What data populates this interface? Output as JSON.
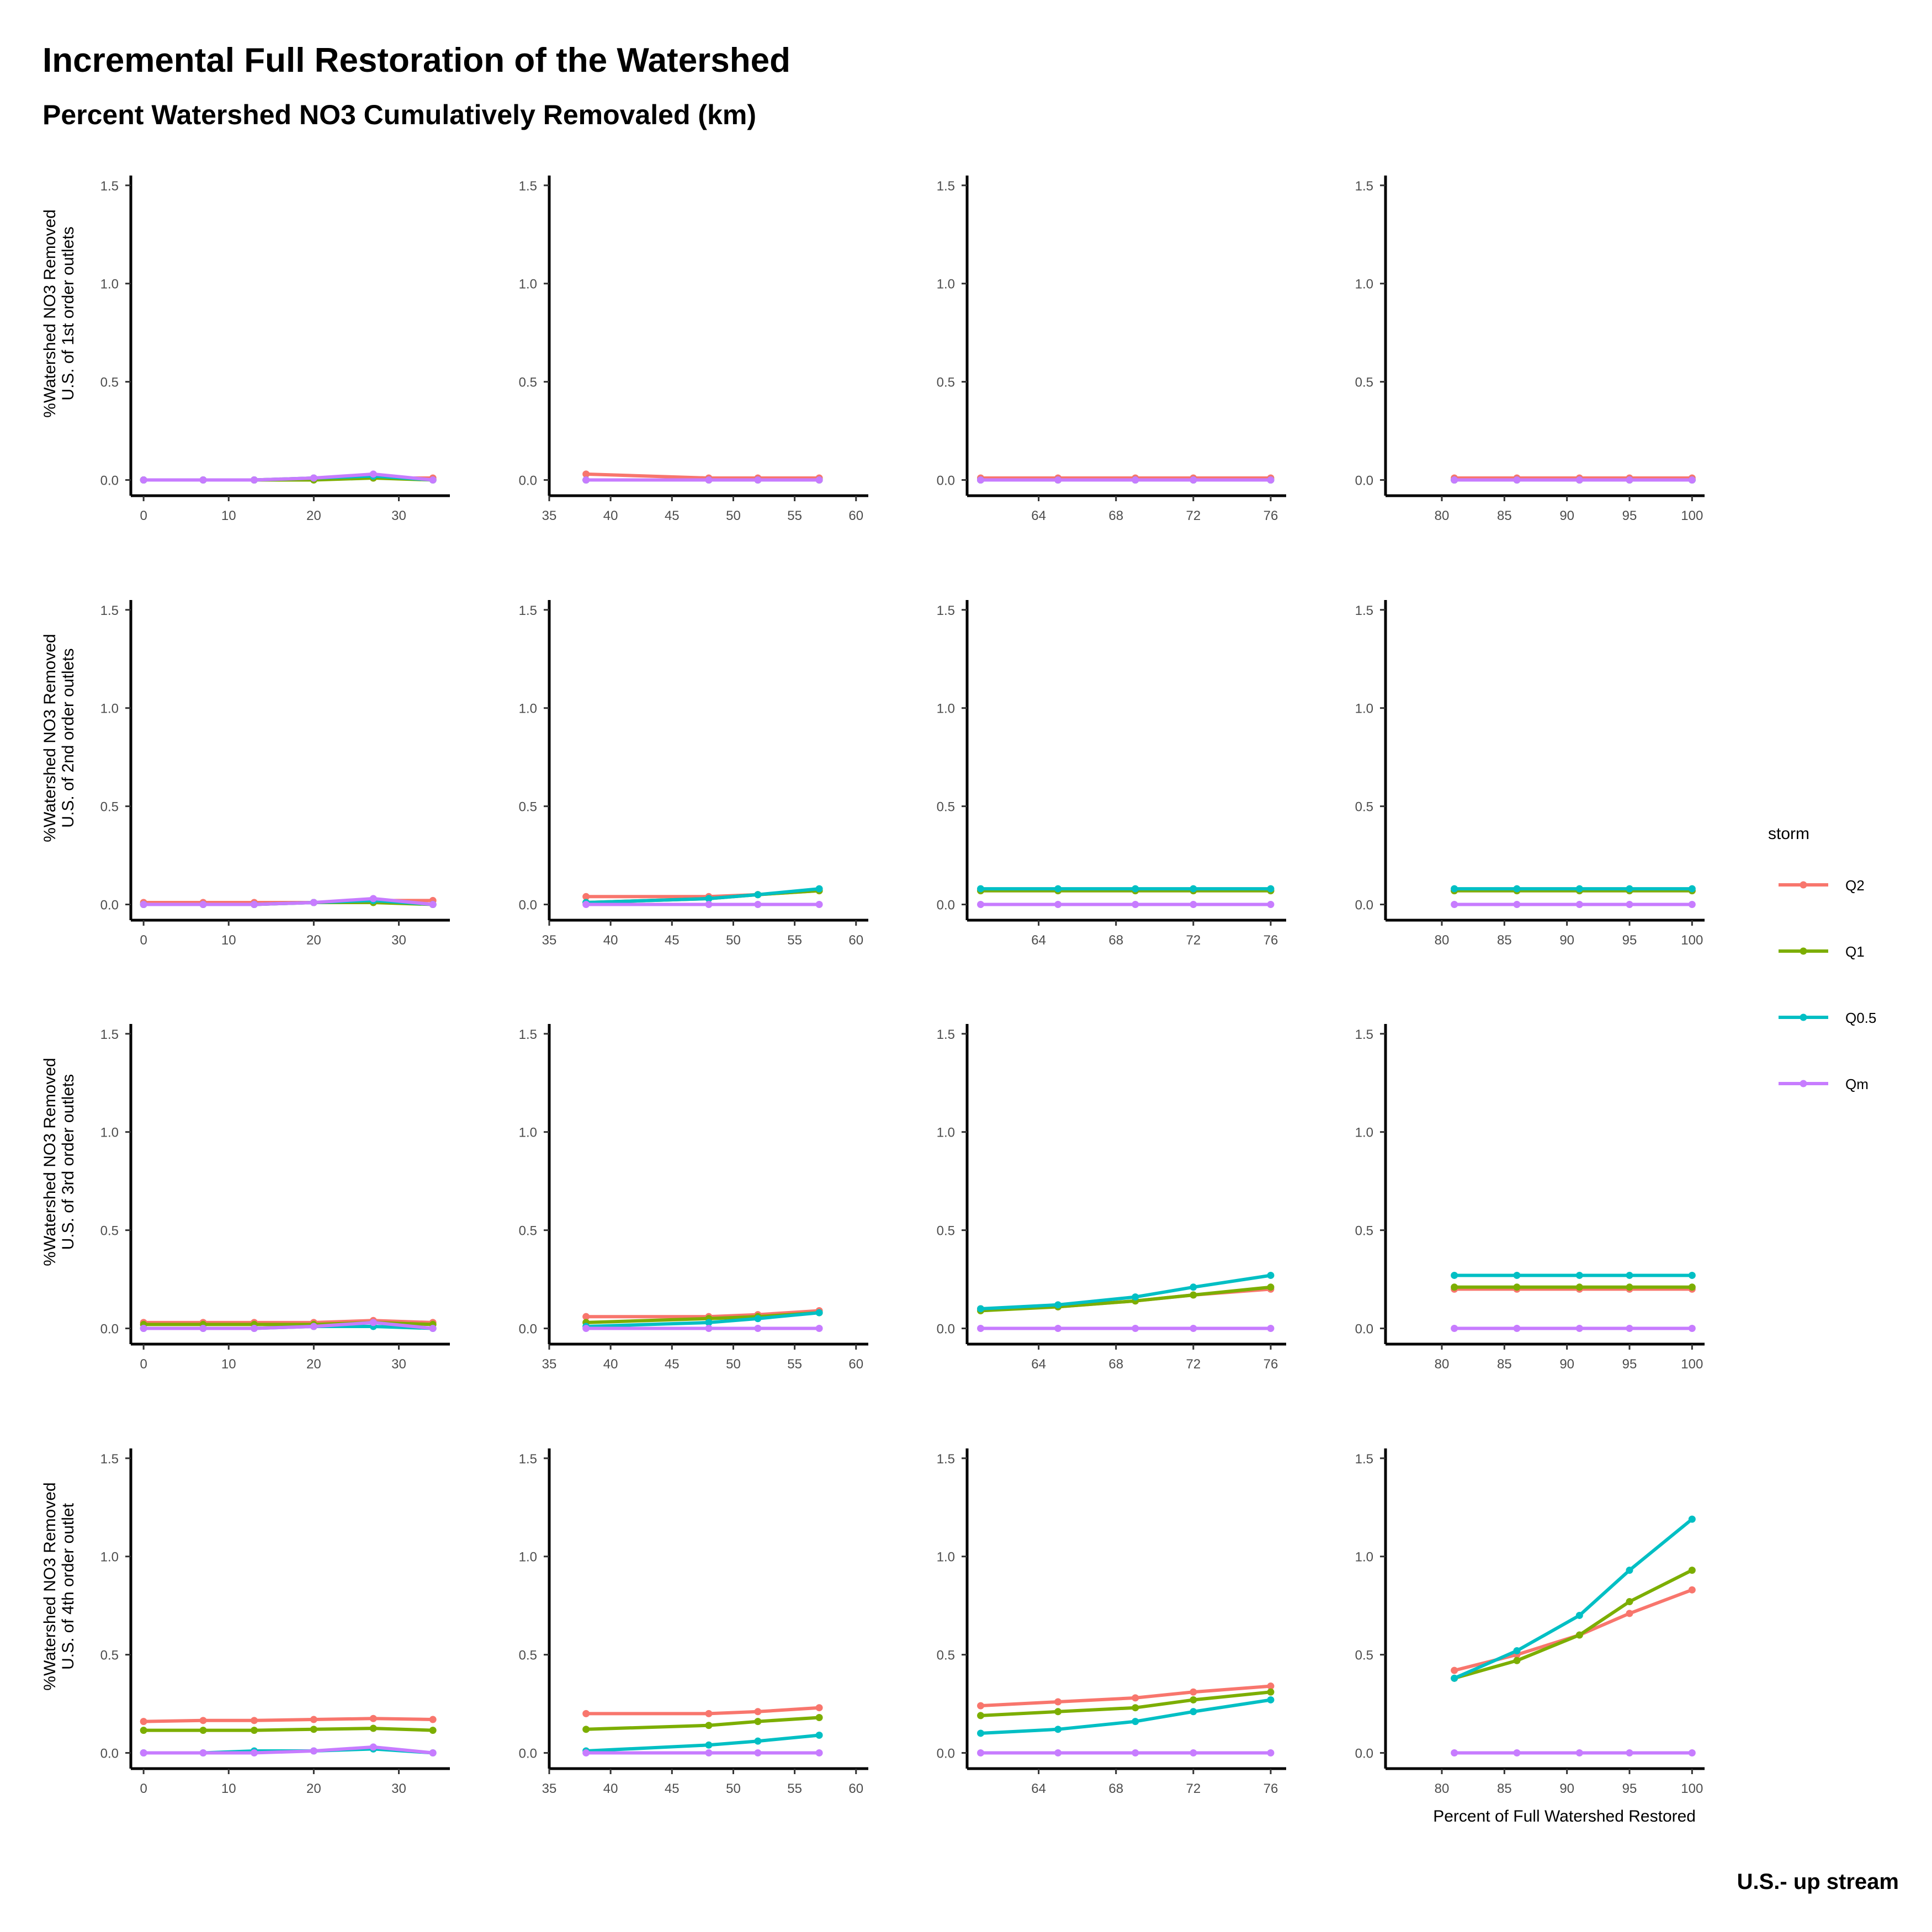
{
  "title": "Incremental Full Restoration of the Watershed",
  "subtitle": "Percent Watershed NO3 Cumulatively Removaled (km)",
  "caption": "U.S.- up stream",
  "legend": {
    "title": "storm",
    "items": [
      {
        "label": "Q2",
        "color": "#F8766D"
      },
      {
        "label": "Q1",
        "color": "#7CAE00"
      },
      {
        "label": "Q0.5",
        "color": "#00BFC4"
      },
      {
        "label": "Qm",
        "color": "#C77CFF"
      }
    ]
  },
  "row_labels": [
    [
      "%Watershed NO3 Removed",
      "U.S. of 1st order outlets"
    ],
    [
      "%Watershed NO3 Removed",
      "U.S. of 2nd order outlets"
    ],
    [
      "%Watershed NO3 Removed",
      "U.S. of 3rd order outlets"
    ],
    [
      "%Watershed NO3 Removed",
      "U.S. of 4th order outlet"
    ]
  ],
  "xlabel_bottom_right": "Percent of Full Watershed Restored",
  "y_ticks": [
    "0.0",
    "0.5",
    "1.0",
    "1.5"
  ],
  "columns": [
    {
      "xlim": [
        -1.5,
        36
      ],
      "x_ticks": [
        0,
        10,
        20,
        30
      ],
      "x": [
        0,
        7,
        13,
        20,
        27,
        34
      ]
    },
    {
      "xlim": [
        35,
        61
      ],
      "x_ticks": [
        35,
        40,
        45,
        50,
        55,
        60
      ],
      "x": [
        38,
        48,
        52,
        57
      ]
    },
    {
      "xlim": [
        60.3,
        76.8
      ],
      "x_ticks": [
        64,
        68,
        72,
        76
      ],
      "x": [
        61,
        65,
        69,
        72,
        76
      ]
    },
    {
      "xlim": [
        75.5,
        101
      ],
      "x_ticks": [
        80,
        85,
        90,
        95,
        100
      ],
      "x": [
        81,
        86,
        91,
        95,
        100
      ]
    }
  ],
  "chart_data": {
    "type": "line",
    "layout": "facet grid 4 rows x 4 columns",
    "ylim": [
      -0.08,
      1.55
    ],
    "panels": [
      {
        "row": 1,
        "col": 1,
        "series": [
          {
            "name": "Q2",
            "values": [
              0.0,
              0.0,
              0.0,
              0.01,
              0.01,
              0.01
            ]
          },
          {
            "name": "Q1",
            "values": [
              0.0,
              0.0,
              0.0,
              0.0,
              0.01,
              0.0
            ]
          },
          {
            "name": "Q0.5",
            "values": [
              0.0,
              0.0,
              0.0,
              0.01,
              0.02,
              0.0
            ]
          },
          {
            "name": "Qm",
            "values": [
              0.0,
              0.0,
              0.0,
              0.01,
              0.03,
              0.0
            ]
          }
        ]
      },
      {
        "row": 1,
        "col": 2,
        "series": [
          {
            "name": "Q2",
            "values": [
              0.03,
              0.01,
              0.01,
              0.01
            ]
          },
          {
            "name": "Q1",
            "values": [
              0.0,
              0.0,
              0.0,
              0.0
            ]
          },
          {
            "name": "Q0.5",
            "values": [
              0.0,
              0.0,
              0.0,
              0.0
            ]
          },
          {
            "name": "Qm",
            "values": [
              0.0,
              0.0,
              0.0,
              0.0
            ]
          }
        ]
      },
      {
        "row": 1,
        "col": 3,
        "series": [
          {
            "name": "Q2",
            "values": [
              0.01,
              0.01,
              0.01,
              0.01,
              0.01
            ]
          },
          {
            "name": "Q1",
            "values": [
              0.0,
              0.0,
              0.0,
              0.0,
              0.0
            ]
          },
          {
            "name": "Q0.5",
            "values": [
              0.0,
              0.0,
              0.0,
              0.0,
              0.0
            ]
          },
          {
            "name": "Qm",
            "values": [
              0.0,
              0.0,
              0.0,
              0.0,
              0.0
            ]
          }
        ]
      },
      {
        "row": 1,
        "col": 4,
        "series": [
          {
            "name": "Q2",
            "values": [
              0.01,
              0.01,
              0.01,
              0.01,
              0.01
            ]
          },
          {
            "name": "Q1",
            "values": [
              0.0,
              0.0,
              0.0,
              0.0,
              0.0
            ]
          },
          {
            "name": "Q0.5",
            "values": [
              0.0,
              0.0,
              0.0,
              0.0,
              0.0
            ]
          },
          {
            "name": "Qm",
            "values": [
              0.0,
              0.0,
              0.0,
              0.0,
              0.0
            ]
          }
        ]
      },
      {
        "row": 2,
        "col": 1,
        "series": [
          {
            "name": "Q2",
            "values": [
              0.01,
              0.01,
              0.01,
              0.01,
              0.02,
              0.02
            ]
          },
          {
            "name": "Q1",
            "values": [
              0.0,
              0.0,
              0.0,
              0.01,
              0.01,
              0.0
            ]
          },
          {
            "name": "Q0.5",
            "values": [
              0.0,
              0.0,
              0.0,
              0.01,
              0.02,
              0.0
            ]
          },
          {
            "name": "Qm",
            "values": [
              0.0,
              0.0,
              0.0,
              0.01,
              0.03,
              0.0
            ]
          }
        ]
      },
      {
        "row": 2,
        "col": 2,
        "series": [
          {
            "name": "Q2",
            "values": [
              0.04,
              0.04,
              0.05,
              0.07
            ]
          },
          {
            "name": "Q1",
            "values": [
              0.01,
              0.03,
              0.05,
              0.07
            ]
          },
          {
            "name": "Q0.5",
            "values": [
              0.01,
              0.03,
              0.05,
              0.08
            ]
          },
          {
            "name": "Qm",
            "values": [
              0.0,
              0.0,
              0.0,
              0.0
            ]
          }
        ]
      },
      {
        "row": 2,
        "col": 3,
        "series": [
          {
            "name": "Q2",
            "values": [
              0.07,
              0.07,
              0.07,
              0.07,
              0.07
            ]
          },
          {
            "name": "Q1",
            "values": [
              0.07,
              0.07,
              0.07,
              0.07,
              0.07
            ]
          },
          {
            "name": "Q0.5",
            "values": [
              0.08,
              0.08,
              0.08,
              0.08,
              0.08
            ]
          },
          {
            "name": "Qm",
            "values": [
              0.0,
              0.0,
              0.0,
              0.0,
              0.0
            ]
          }
        ]
      },
      {
        "row": 2,
        "col": 4,
        "series": [
          {
            "name": "Q2",
            "values": [
              0.07,
              0.07,
              0.07,
              0.07,
              0.07
            ]
          },
          {
            "name": "Q1",
            "values": [
              0.07,
              0.07,
              0.07,
              0.07,
              0.07
            ]
          },
          {
            "name": "Q0.5",
            "values": [
              0.08,
              0.08,
              0.08,
              0.08,
              0.08
            ]
          },
          {
            "name": "Qm",
            "values": [
              0.0,
              0.0,
              0.0,
              0.0,
              0.0
            ]
          }
        ]
      },
      {
        "row": 3,
        "col": 1,
        "series": [
          {
            "name": "Q2",
            "values": [
              0.03,
              0.03,
              0.03,
              0.03,
              0.04,
              0.03
            ]
          },
          {
            "name": "Q1",
            "values": [
              0.02,
              0.02,
              0.02,
              0.02,
              0.03,
              0.02
            ]
          },
          {
            "name": "Q0.5",
            "values": [
              0.0,
              0.0,
              0.0,
              0.01,
              0.01,
              0.0
            ]
          },
          {
            "name": "Qm",
            "values": [
              0.0,
              0.0,
              0.0,
              0.01,
              0.03,
              0.0
            ]
          }
        ]
      },
      {
        "row": 3,
        "col": 2,
        "series": [
          {
            "name": "Q2",
            "values": [
              0.06,
              0.06,
              0.07,
              0.09
            ]
          },
          {
            "name": "Q1",
            "values": [
              0.03,
              0.05,
              0.06,
              0.08
            ]
          },
          {
            "name": "Q0.5",
            "values": [
              0.01,
              0.03,
              0.05,
              0.08
            ]
          },
          {
            "name": "Qm",
            "values": [
              0.0,
              0.0,
              0.0,
              0.0
            ]
          }
        ]
      },
      {
        "row": 3,
        "col": 3,
        "series": [
          {
            "name": "Q2",
            "values": [
              0.1,
              0.11,
              0.14,
              0.17,
              0.2
            ]
          },
          {
            "name": "Q1",
            "values": [
              0.09,
              0.11,
              0.14,
              0.17,
              0.21
            ]
          },
          {
            "name": "Q0.5",
            "values": [
              0.1,
              0.12,
              0.16,
              0.21,
              0.27
            ]
          },
          {
            "name": "Qm",
            "values": [
              0.0,
              0.0,
              0.0,
              0.0,
              0.0
            ]
          }
        ]
      },
      {
        "row": 3,
        "col": 4,
        "series": [
          {
            "name": "Q2",
            "values": [
              0.2,
              0.2,
              0.2,
              0.2,
              0.2
            ]
          },
          {
            "name": "Q1",
            "values": [
              0.21,
              0.21,
              0.21,
              0.21,
              0.21
            ]
          },
          {
            "name": "Q0.5",
            "values": [
              0.27,
              0.27,
              0.27,
              0.27,
              0.27
            ]
          },
          {
            "name": "Qm",
            "values": [
              0.0,
              0.0,
              0.0,
              0.0,
              0.0
            ]
          }
        ]
      },
      {
        "row": 4,
        "col": 1,
        "series": [
          {
            "name": "Q2",
            "values": [
              0.16,
              0.165,
              0.165,
              0.17,
              0.175,
              0.17
            ]
          },
          {
            "name": "Q1",
            "values": [
              0.115,
              0.115,
              0.115,
              0.12,
              0.125,
              0.115
            ]
          },
          {
            "name": "Q0.5",
            "values": [
              0.0,
              0.0,
              0.01,
              0.01,
              0.02,
              0.0
            ]
          },
          {
            "name": "Qm",
            "values": [
              0.0,
              0.0,
              0.0,
              0.01,
              0.03,
              0.0
            ]
          }
        ]
      },
      {
        "row": 4,
        "col": 2,
        "series": [
          {
            "name": "Q2",
            "values": [
              0.2,
              0.2,
              0.21,
              0.23
            ]
          },
          {
            "name": "Q1",
            "values": [
              0.12,
              0.14,
              0.16,
              0.18
            ]
          },
          {
            "name": "Q0.5",
            "values": [
              0.01,
              0.04,
              0.06,
              0.09
            ]
          },
          {
            "name": "Qm",
            "values": [
              0.0,
              0.0,
              0.0,
              0.0
            ]
          }
        ]
      },
      {
        "row": 4,
        "col": 3,
        "series": [
          {
            "name": "Q2",
            "values": [
              0.24,
              0.26,
              0.28,
              0.31,
              0.34
            ]
          },
          {
            "name": "Q1",
            "values": [
              0.19,
              0.21,
              0.23,
              0.27,
              0.31
            ]
          },
          {
            "name": "Q0.5",
            "values": [
              0.1,
              0.12,
              0.16,
              0.21,
              0.27
            ]
          },
          {
            "name": "Qm",
            "values": [
              0.0,
              0.0,
              0.0,
              0.0,
              0.0
            ]
          }
        ]
      },
      {
        "row": 4,
        "col": 4,
        "series": [
          {
            "name": "Q2",
            "values": [
              0.42,
              0.5,
              0.6,
              0.71,
              0.83
            ]
          },
          {
            "name": "Q1",
            "values": [
              0.38,
              0.47,
              0.6,
              0.77,
              0.93
            ]
          },
          {
            "name": "Q0.5",
            "values": [
              0.38,
              0.52,
              0.7,
              0.93,
              1.19
            ]
          },
          {
            "name": "Qm",
            "values": [
              0.0,
              0.0,
              0.0,
              0.0,
              0.0
            ]
          }
        ]
      }
    ]
  }
}
